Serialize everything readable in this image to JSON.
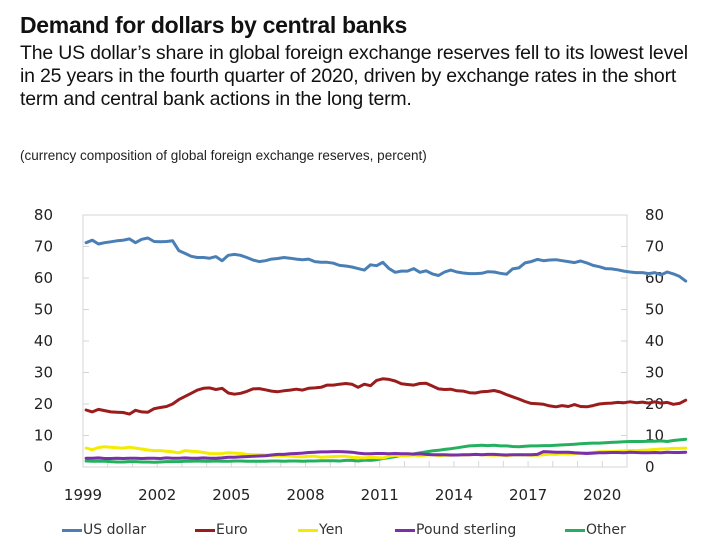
{
  "header": {
    "title": "Demand for dollars by central banks",
    "subtitle": "The US dollar’s share in global foreign exchange reserves fell to its lowest level in 25 years in the fourth quarter of 2020, driven by exchange rates in the short term and central bank actions in the long term.",
    "note": "(currency composition of global foreign exchange reserves, percent)"
  },
  "chart_data": {
    "type": "line",
    "title": "Demand for dollars by central banks",
    "subtitle": "(currency composition of global foreign exchange reserves, percent)",
    "xlabel": "",
    "ylabel": "percent",
    "frequency": "quarterly",
    "x_start": "1999Q1",
    "x_end": "2020Q4",
    "xlim": [
      1999,
      2021
    ],
    "ylim": [
      0,
      80
    ],
    "yticks": [
      0,
      10,
      20,
      30,
      40,
      50,
      60,
      70,
      80
    ],
    "xticks": [
      "1999",
      "2002",
      "2005",
      "2008",
      "2011",
      "2014",
      "2017",
      "2020"
    ],
    "grid": false,
    "dual_y_axis": true,
    "legend_position": "bottom",
    "series": [
      {
        "name": "US dollar",
        "color": "#4a7fb5",
        "values": [
          71.2,
          72.0,
          70.8,
          71.2,
          71.5,
          71.8,
          72.0,
          72.4,
          71.2,
          72.3,
          72.7,
          71.6,
          71.5,
          71.6,
          71.8,
          68.7,
          67.8,
          66.9,
          66.5,
          66.5,
          66.3,
          66.8,
          65.5,
          67.2,
          67.5,
          67.2,
          66.5,
          65.7,
          65.2,
          65.5,
          66.0,
          66.2,
          66.5,
          66.3,
          66.0,
          65.8,
          66.0,
          65.2,
          65.0,
          65.0,
          64.7,
          64.0,
          63.8,
          63.5,
          63.0,
          62.5,
          64.2,
          63.9,
          65.0,
          63.0,
          61.8,
          62.2,
          62.2,
          63.0,
          61.8,
          62.3,
          61.3,
          60.8,
          61.9,
          62.5,
          61.9,
          61.6,
          61.4,
          61.4,
          61.5,
          62.0,
          61.9,
          61.5,
          61.2,
          62.9,
          63.2,
          64.8,
          65.2,
          65.9,
          65.5,
          65.7,
          65.8,
          65.5,
          65.2,
          64.9,
          65.4,
          64.8,
          64.0,
          63.6,
          63.0,
          62.9,
          62.6,
          62.2,
          61.9,
          61.7,
          61.7,
          61.4,
          61.7,
          61.0,
          61.9,
          61.3,
          60.5,
          59.0
        ]
      },
      {
        "name": "Euro",
        "color": "#9b1c1c",
        "values": [
          18.1,
          17.5,
          18.3,
          17.9,
          17.5,
          17.4,
          17.3,
          16.8,
          18.0,
          17.5,
          17.4,
          18.5,
          18.9,
          19.2,
          20.0,
          21.4,
          22.4,
          23.4,
          24.4,
          25.0,
          25.1,
          24.6,
          25.0,
          23.5,
          23.1,
          23.4,
          24.0,
          24.8,
          24.9,
          24.5,
          24.1,
          23.9,
          24.2,
          24.4,
          24.7,
          24.4,
          25.0,
          25.1,
          25.3,
          26.0,
          26.0,
          26.3,
          26.5,
          26.3,
          25.3,
          26.3,
          25.8,
          27.5,
          28.0,
          27.8,
          27.3,
          26.4,
          26.2,
          26.0,
          26.5,
          26.6,
          25.7,
          24.8,
          24.6,
          24.7,
          24.2,
          24.1,
          23.6,
          23.5,
          23.9,
          24.0,
          24.3,
          23.8,
          23.0,
          22.3,
          21.6,
          20.8,
          20.2,
          20.1,
          19.9,
          19.4,
          19.1,
          19.5,
          19.2,
          19.8,
          19.2,
          19.1,
          19.5,
          20.0,
          20.2,
          20.3,
          20.5,
          20.4,
          20.7,
          20.4,
          20.6,
          20.3,
          20.7,
          20.3,
          20.5,
          19.9,
          20.2,
          21.2
        ]
      },
      {
        "name": "Yen",
        "color": "#f4ec00",
        "values": [
          6.0,
          5.5,
          6.2,
          6.4,
          6.3,
          6.1,
          6.0,
          6.3,
          6.0,
          5.7,
          5.4,
          5.2,
          5.2,
          5.0,
          4.8,
          4.5,
          5.2,
          5.0,
          4.9,
          4.6,
          4.3,
          4.2,
          4.3,
          4.5,
          4.4,
          4.3,
          4.0,
          3.9,
          3.9,
          3.8,
          3.6,
          3.5,
          3.6,
          3.5,
          3.3,
          3.2,
          3.4,
          3.4,
          3.1,
          3.2,
          3.3,
          3.4,
          3.4,
          3.1,
          3.0,
          2.9,
          3.1,
          3.0,
          2.9,
          3.4,
          3.7,
          3.6,
          3.6,
          3.8,
          3.6,
          3.8,
          3.9,
          3.6,
          3.7,
          3.7,
          3.8,
          3.8,
          3.9,
          4.0,
          3.9,
          3.8,
          3.7,
          3.8,
          3.6,
          3.8,
          3.9,
          3.8,
          3.7,
          3.7,
          3.9,
          4.1,
          4.0,
          4.2,
          4.1,
          4.2,
          4.4,
          4.5,
          4.6,
          4.8,
          4.9,
          4.9,
          5.0,
          5.1,
          5.2,
          5.2,
          5.3,
          5.4,
          5.6,
          5.7,
          5.8,
          5.9,
          5.9,
          6.0
        ]
      },
      {
        "name": "Pound sterling",
        "color": "#7b2fa8",
        "values": [
          2.8,
          2.8,
          2.9,
          2.7,
          2.7,
          2.8,
          2.7,
          2.8,
          2.8,
          2.7,
          2.8,
          2.8,
          2.7,
          2.9,
          2.8,
          2.8,
          2.9,
          2.8,
          2.8,
          2.9,
          2.8,
          2.8,
          2.9,
          3.1,
          3.1,
          3.2,
          3.3,
          3.4,
          3.5,
          3.6,
          3.8,
          4.0,
          4.0,
          4.2,
          4.3,
          4.4,
          4.6,
          4.7,
          4.8,
          4.8,
          4.9,
          4.9,
          4.8,
          4.7,
          4.4,
          4.2,
          4.2,
          4.3,
          4.3,
          4.2,
          4.3,
          4.2,
          4.2,
          4.1,
          4.2,
          4.0,
          3.9,
          3.9,
          3.9,
          3.8,
          3.8,
          3.9,
          3.9,
          4.0,
          3.9,
          4.0,
          4.0,
          3.9,
          3.8,
          3.9,
          3.9,
          3.9,
          3.9,
          4.0,
          4.9,
          4.8,
          4.7,
          4.7,
          4.7,
          4.5,
          4.4,
          4.3,
          4.4,
          4.5,
          4.5,
          4.6,
          4.6,
          4.5,
          4.7,
          4.6,
          4.5,
          4.5,
          4.6,
          4.5,
          4.7,
          4.6,
          4.6,
          4.7
        ]
      },
      {
        "name": "Other",
        "color": "#25b060",
        "values": [
          1.9,
          1.8,
          1.8,
          1.8,
          1.7,
          1.6,
          1.6,
          1.7,
          1.7,
          1.6,
          1.6,
          1.5,
          1.6,
          1.7,
          1.7,
          1.7,
          1.8,
          1.8,
          1.9,
          1.8,
          1.8,
          1.9,
          1.8,
          1.8,
          1.9,
          1.9,
          1.8,
          1.8,
          1.8,
          1.8,
          1.9,
          1.9,
          1.8,
          1.9,
          1.9,
          1.8,
          1.9,
          1.9,
          2.0,
          2.0,
          2.0,
          1.9,
          2.1,
          2.1,
          1.9,
          2.2,
          2.1,
          2.3,
          2.7,
          3.0,
          3.3,
          3.7,
          3.9,
          4.2,
          4.5,
          4.8,
          5.1,
          5.3,
          5.6,
          5.8,
          6.1,
          6.4,
          6.7,
          6.8,
          6.9,
          6.8,
          6.9,
          6.7,
          6.7,
          6.5,
          6.4,
          6.6,
          6.7,
          6.7,
          6.8,
          6.8,
          6.9,
          7.0,
          7.1,
          7.2,
          7.4,
          7.5,
          7.6,
          7.6,
          7.7,
          7.8,
          7.9,
          8.0,
          8.1,
          8.1,
          8.1,
          8.2,
          8.2,
          8.3,
          8.1,
          8.4,
          8.6,
          8.8
        ]
      }
    ]
  }
}
